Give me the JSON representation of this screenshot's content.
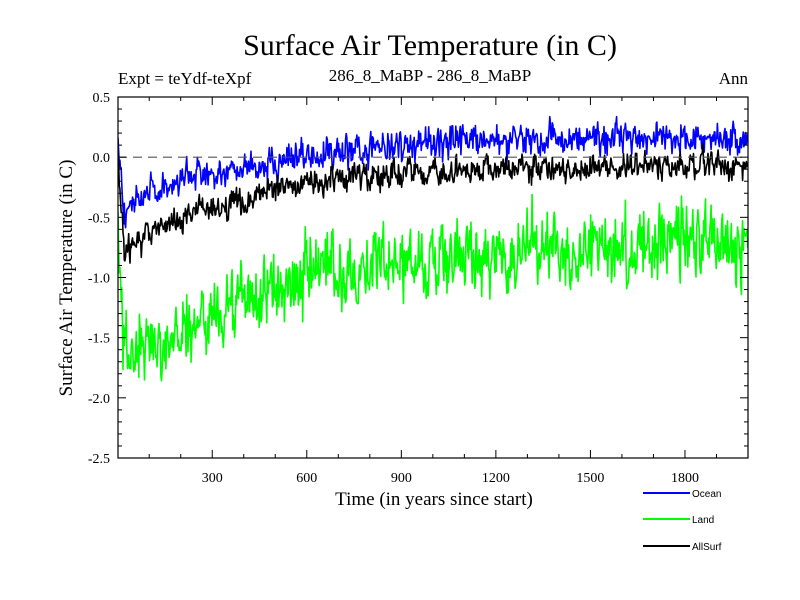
{
  "chart_data": {
    "type": "line",
    "title": "Surface Air Temperature (in C)",
    "subtitle_left": "Expt = teYdf-teXpf",
    "subtitle_center": "286_8_MaBP - 286_8_MaBP",
    "subtitle_right": "Ann",
    "xlabel": "Time (in years since start)",
    "ylabel": "Surface Air Temperature (in C)",
    "xlim": [
      1,
      2000
    ],
    "ylim": [
      -2.5,
      0.5
    ],
    "xticks": [
      300,
      600,
      900,
      1200,
      1500,
      1800
    ],
    "xtick_labels": [
      "300",
      "600",
      "900",
      "1200",
      "1500",
      "1800"
    ],
    "yticks": [
      0.5,
      0.0,
      -0.5,
      -1.0,
      -1.5,
      -2.0,
      -2.5
    ],
    "ytick_labels": [
      "0.5",
      "0.0",
      "-0.5",
      "-1.0",
      "-1.5",
      "-2.0",
      "-2.5"
    ],
    "reference_line": 0.0,
    "legend": [
      "Ocean",
      "Land",
      "AllSurf"
    ],
    "series": [
      {
        "name": "Ocean",
        "color": "#0000ff",
        "mean": {
          "x": [
            1,
            20,
            60,
            120,
            200,
            300,
            400,
            500,
            600,
            800,
            1000,
            1200,
            1400,
            1600,
            1800,
            2000
          ],
          "y": [
            0.05,
            -0.45,
            -0.35,
            -0.25,
            -0.2,
            -0.15,
            -0.1,
            -0.05,
            0.0,
            0.08,
            0.12,
            0.14,
            0.15,
            0.15,
            0.15,
            0.15
          ]
        },
        "noise": 0.14
      },
      {
        "name": "Land",
        "color": "#00ff00",
        "mean": {
          "x": [
            1,
            20,
            60,
            120,
            200,
            300,
            400,
            500,
            600,
            800,
            1000,
            1200,
            1400,
            1600,
            1800,
            2000
          ],
          "y": [
            -0.6,
            -1.6,
            -1.65,
            -1.55,
            -1.45,
            -1.3,
            -1.2,
            -1.1,
            -1.0,
            -0.9,
            -0.85,
            -0.8,
            -0.75,
            -0.72,
            -0.7,
            -0.72
          ]
        },
        "noise": 0.32
      },
      {
        "name": "AllSurf",
        "color": "#000000",
        "mean": {
          "x": [
            1,
            20,
            60,
            120,
            200,
            300,
            400,
            500,
            600,
            800,
            1000,
            1200,
            1400,
            1600,
            1800,
            2000
          ],
          "y": [
            0.0,
            -0.8,
            -0.72,
            -0.6,
            -0.5,
            -0.42,
            -0.35,
            -0.28,
            -0.22,
            -0.15,
            -0.12,
            -0.1,
            -0.09,
            -0.08,
            -0.07,
            -0.08
          ]
        },
        "noise": 0.12
      }
    ]
  }
}
